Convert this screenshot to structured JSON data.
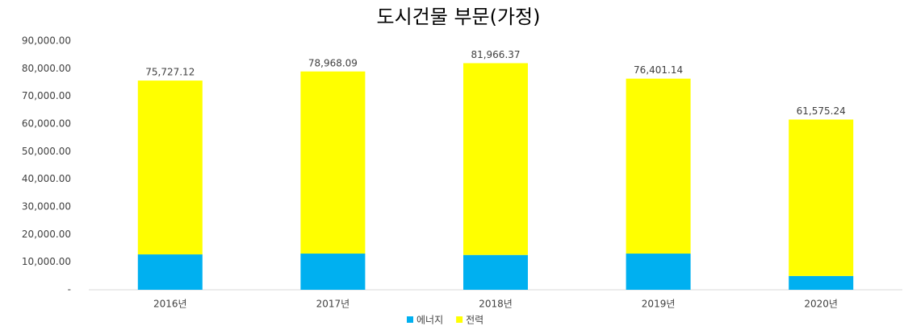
{
  "chart_data": {
    "type": "stacked_bar",
    "title": "도시건물 부문(가정)",
    "categories": [
      "2016년",
      "2017년",
      "2018년",
      "2019년",
      "2020년"
    ],
    "series": [
      {
        "name": "에너지",
        "color": "#00b0f0",
        "values": [
          12800,
          13100,
          12600,
          13100,
          5000
        ]
      },
      {
        "name": "전력",
        "color": "#ffff00",
        "values": [
          62900,
          65900,
          69400,
          63300,
          56600
        ]
      }
    ],
    "totals": [
      75727.12,
      78968.09,
      81966.37,
      76401.14,
      61575.24
    ],
    "total_labels": [
      "75,727.12",
      "78,968.09",
      "81,966.37",
      "76,401.14",
      "61,575.24"
    ],
    "ylim": [
      0,
      90000
    ],
    "yticks": [
      {
        "value": 0,
        "label": "-"
      },
      {
        "value": 10000,
        "label": "10,000.00"
      },
      {
        "value": 20000,
        "label": "20,000.00"
      },
      {
        "value": 30000,
        "label": "30,000.00"
      },
      {
        "value": 40000,
        "label": "40,000.00"
      },
      {
        "value": 50000,
        "label": "50,000.00"
      },
      {
        "value": 60000,
        "label": "60,000.00"
      },
      {
        "value": 70000,
        "label": "70,000.00"
      },
      {
        "value": 80000,
        "label": "80,000.00"
      },
      {
        "value": 90000,
        "label": "90,000.00"
      }
    ],
    "legend": "bottom"
  }
}
